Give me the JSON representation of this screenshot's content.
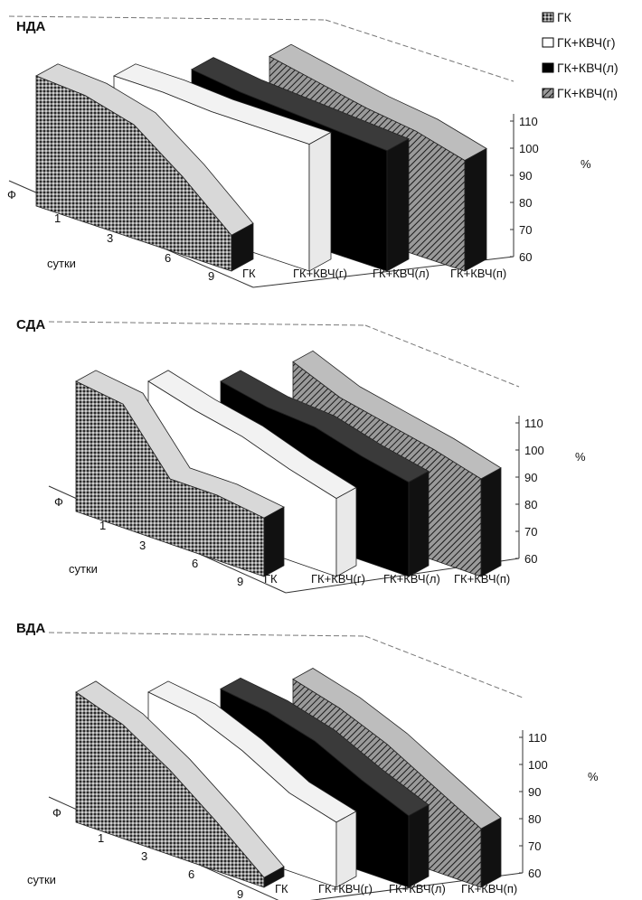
{
  "legend": {
    "items": [
      {
        "label": "ГК",
        "pattern": "fine"
      },
      {
        "label": "ГК+КВЧ(г)",
        "pattern": "white"
      },
      {
        "label": "ГК+КВЧ(л)",
        "pattern": "black"
      },
      {
        "label": "ГК+КВЧ(п)",
        "pattern": "hatch"
      }
    ]
  },
  "chart_data": [
    {
      "type": "area",
      "title": "НДА",
      "categories": [
        "Ф",
        "1",
        "3",
        "6",
        "9"
      ],
      "xlabel": "сутки",
      "ylabel": "%",
      "ylim": [
        60,
        110
      ],
      "yticks": [
        60,
        70,
        80,
        90,
        100,
        110
      ],
      "series": [
        {
          "name": "ГК",
          "values": [
            100,
            99,
            95,
            84,
            71
          ]
        },
        {
          "name": "ГК+КВЧ(г)",
          "values": [
            100,
            100,
            99,
            99,
            99
          ]
        },
        {
          "name": "ГК+КВЧ(л)",
          "values": [
            102,
            100,
            99,
            98,
            97
          ]
        },
        {
          "name": "ГК+КВЧ(п)",
          "values": [
            106,
            103,
            100,
            98,
            94
          ]
        }
      ]
    },
    {
      "type": "area",
      "title": "СДА",
      "categories": [
        "Ф",
        "1",
        "3",
        "6",
        "9"
      ],
      "xlabel": "сутки",
      "ylabel": "%",
      "ylim": [
        60,
        110
      ],
      "yticks": [
        60,
        70,
        80,
        90,
        100,
        110
      ],
      "series": [
        {
          "name": "ГК",
          "values": [
            100,
            98,
            80,
            80,
            78
          ]
        },
        {
          "name": "ГК+КВЧ(г)",
          "values": [
            100,
            96,
            93,
            88,
            84
          ]
        },
        {
          "name": "ГК+КВЧ(л)",
          "values": [
            100,
            97,
            96,
            92,
            89
          ]
        },
        {
          "name": "ГК+КВЧ(п)",
          "values": [
            106,
            100,
            97,
            94,
            90
          ]
        }
      ]
    },
    {
      "type": "area",
      "title": "ВДА",
      "categories": [
        "Ф",
        "1",
        "3",
        "6",
        "9"
      ],
      "xlabel": "сутки",
      "ylabel": "%",
      "ylim": [
        60,
        110
      ],
      "yticks": [
        60,
        70,
        80,
        90,
        100,
        110
      ],
      "series": [
        {
          "name": "ГК",
          "values": [
            100,
            95,
            86,
            75,
            63
          ]
        },
        {
          "name": "ГК+КВЧ(г)",
          "values": [
            100,
            98,
            92,
            84,
            80
          ]
        },
        {
          "name": "ГК+КВЧ(л)",
          "values": [
            101,
            99,
            95,
            88,
            82
          ]
        },
        {
          "name": "ГК+КВЧ(п)",
          "values": [
            104,
            100,
            94,
            86,
            78
          ]
        }
      ]
    }
  ]
}
